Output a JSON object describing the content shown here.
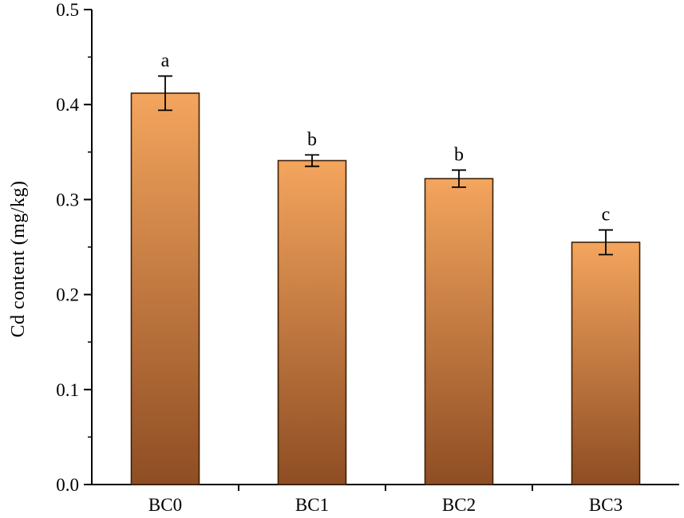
{
  "chart_data": {
    "type": "bar",
    "title": "",
    "xlabel": "",
    "ylabel": "Cd content (mg/kg)",
    "categories": [
      "BC0",
      "BC1",
      "BC2",
      "BC3"
    ],
    "values": [
      0.412,
      0.341,
      0.322,
      0.255
    ],
    "errors": [
      0.018,
      0.006,
      0.009,
      0.013
    ],
    "sig_letters": [
      "a",
      "b",
      "b",
      "c"
    ],
    "ylim": [
      0.0,
      0.5
    ],
    "y_major_ticks": [
      0.0,
      0.1,
      0.2,
      0.3,
      0.4,
      0.5
    ],
    "y_minor_step": 0.05,
    "grid": false,
    "legend": "none",
    "colors": {
      "bar_fill_top": "#F4A55E",
      "bar_fill_bottom": "#8E4D23",
      "bar_stroke": "#3D2207",
      "axis": "#000000",
      "error_bar": "#000000"
    }
  }
}
